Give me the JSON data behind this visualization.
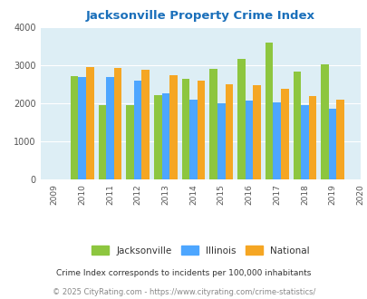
{
  "title": "Jacksonville Property Crime Index",
  "years": [
    2009,
    2010,
    2011,
    2012,
    2013,
    2014,
    2015,
    2016,
    2017,
    2018,
    2019,
    2020
  ],
  "bar_years": [
    2010,
    2011,
    2012,
    2013,
    2014,
    2015,
    2016,
    2017,
    2018,
    2019
  ],
  "jacksonville": [
    2700,
    1950,
    1950,
    2220,
    2650,
    2900,
    3150,
    3600,
    2820,
    3030
  ],
  "illinois": [
    2680,
    2680,
    2580,
    2250,
    2080,
    1990,
    2060,
    2010,
    1940,
    1860
  ],
  "national": [
    2950,
    2920,
    2870,
    2740,
    2600,
    2500,
    2460,
    2370,
    2180,
    2100
  ],
  "jax_color": "#8dc63f",
  "ill_color": "#4da6ff",
  "nat_color": "#f5a623",
  "bg_color": "#ddeef5",
  "ylim": [
    0,
    4000
  ],
  "yticks": [
    0,
    1000,
    2000,
    3000,
    4000
  ],
  "legend_labels": [
    "Jacksonville",
    "Illinois",
    "National"
  ],
  "footnote1": "Crime Index corresponds to incidents per 100,000 inhabitants",
  "footnote2": "© 2025 CityRating.com - https://www.cityrating.com/crime-statistics/",
  "title_color": "#1a6fba",
  "footnote1_color": "#333333",
  "footnote2_color": "#888888"
}
